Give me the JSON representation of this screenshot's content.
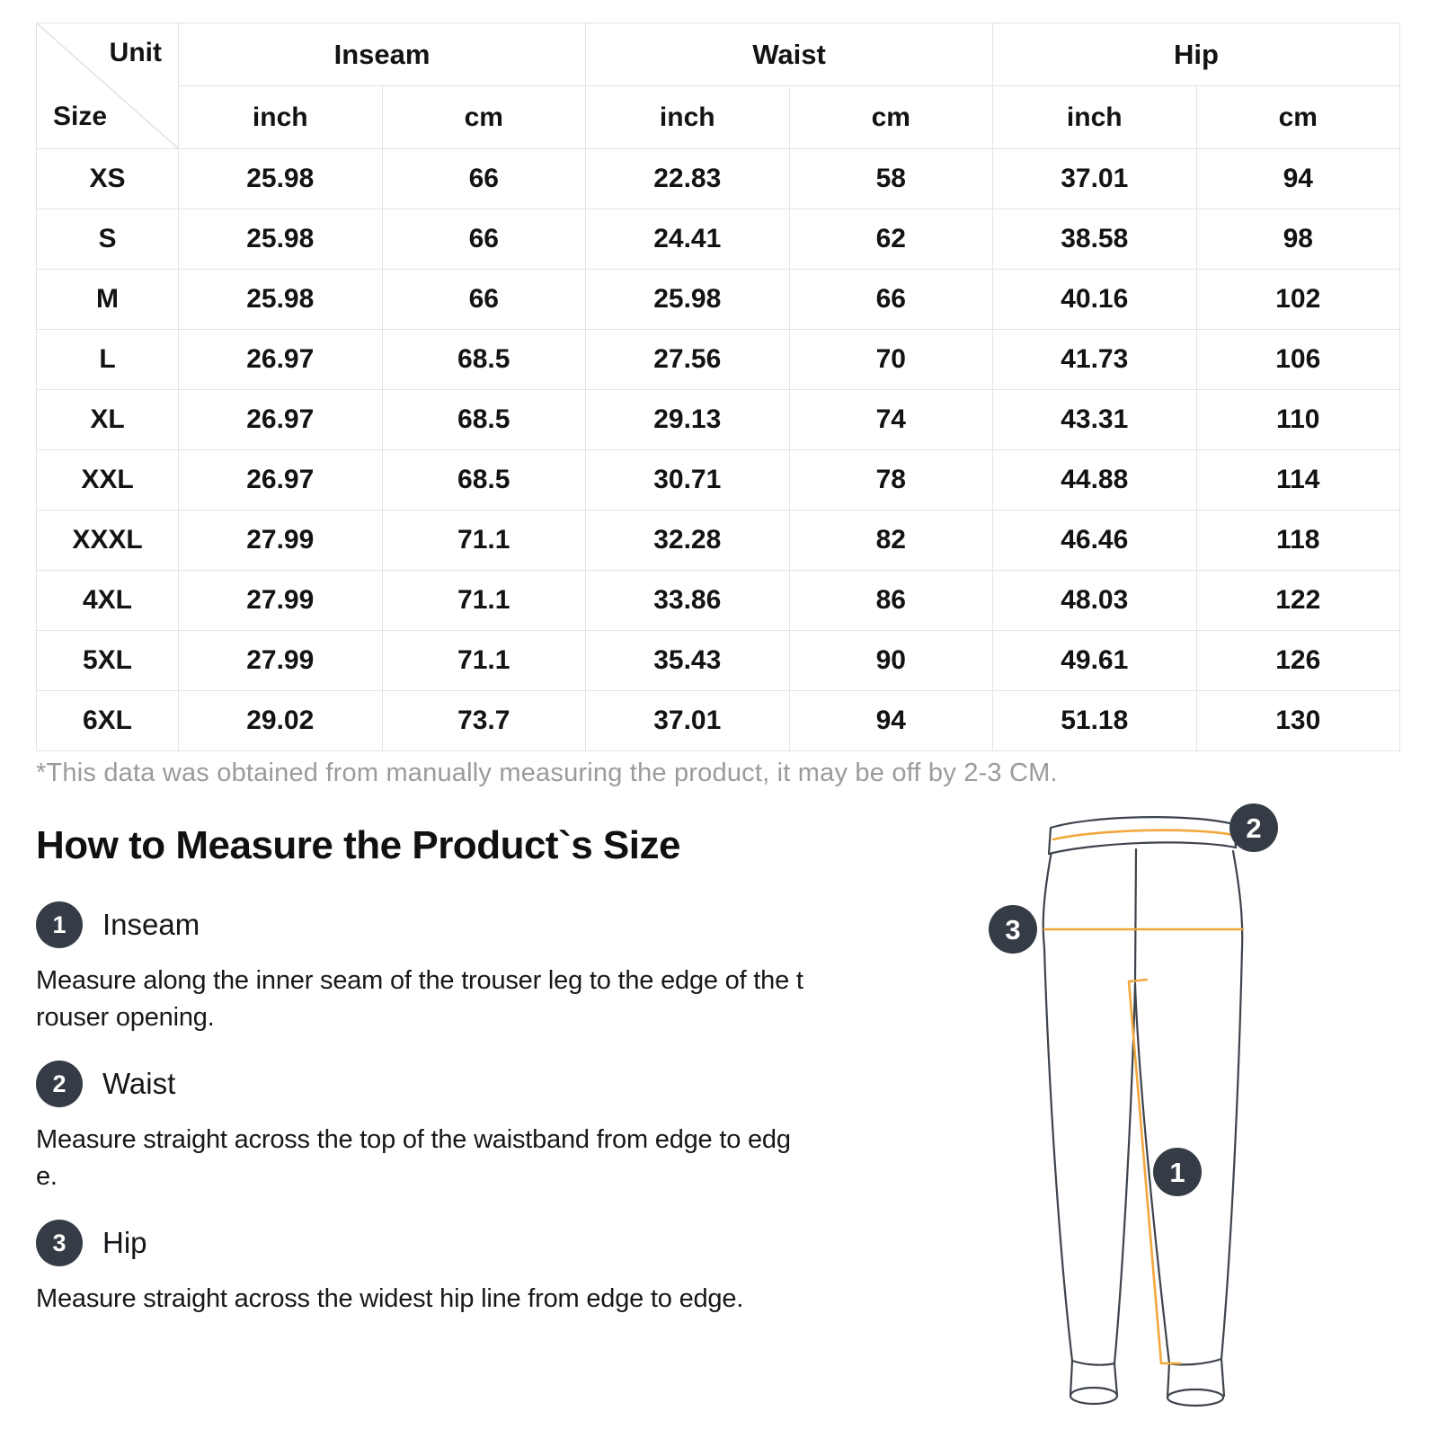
{
  "table": {
    "corner": {
      "unit_label": "Unit",
      "size_label": "Size"
    },
    "groups": [
      "Inseam",
      "Waist",
      "Hip"
    ],
    "sub_headers": [
      "inch",
      "cm",
      "inch",
      "cm",
      "inch",
      "cm"
    ],
    "rows": [
      {
        "size": "XS",
        "cells": [
          "25.98",
          "66",
          "22.83",
          "58",
          "37.01",
          "94"
        ]
      },
      {
        "size": "S",
        "cells": [
          "25.98",
          "66",
          "24.41",
          "62",
          "38.58",
          "98"
        ]
      },
      {
        "size": "M",
        "cells": [
          "25.98",
          "66",
          "25.98",
          "66",
          "40.16",
          "102"
        ]
      },
      {
        "size": "L",
        "cells": [
          "26.97",
          "68.5",
          "27.56",
          "70",
          "41.73",
          "106"
        ]
      },
      {
        "size": "XL",
        "cells": [
          "26.97",
          "68.5",
          "29.13",
          "74",
          "43.31",
          "110"
        ]
      },
      {
        "size": "XXL",
        "cells": [
          "26.97",
          "68.5",
          "30.71",
          "78",
          "44.88",
          "114"
        ]
      },
      {
        "size": "XXXL",
        "cells": [
          "27.99",
          "71.1",
          "32.28",
          "82",
          "46.46",
          "118"
        ]
      },
      {
        "size": "4XL",
        "cells": [
          "27.99",
          "71.1",
          "33.86",
          "86",
          "48.03",
          "122"
        ]
      },
      {
        "size": "5XL",
        "cells": [
          "27.99",
          "71.1",
          "35.43",
          "90",
          "49.61",
          "126"
        ]
      },
      {
        "size": "6XL",
        "cells": [
          "29.02",
          "73.7",
          "37.01",
          "94",
          "51.18",
          "130"
        ]
      }
    ],
    "footnote": "*This data was obtained from manually measuring the product, it may be off by 2-3 CM."
  },
  "guide": {
    "title": "How to Measure the Product`s Size",
    "steps": [
      {
        "number": "1",
        "label": "Inseam",
        "description": "Measure along the inner seam of the trouser leg to the edge of the trouser opening."
      },
      {
        "number": "2",
        "label": "Waist",
        "description": "Measure straight across the top of the waistband from edge to edge."
      },
      {
        "number": "3",
        "label": "Hip",
        "description": "Measure straight across the widest hip line from edge to edge."
      }
    ]
  },
  "diagram": {
    "markers": [
      "1",
      "2",
      "3"
    ],
    "colors": {
      "outline": "#3d444c",
      "measure_line": "#f2a73d",
      "badge_fill": "#353c45",
      "badge_text": "#ffffff"
    }
  },
  "colors": {
    "table_border": "#e4e4e4",
    "text": "#131313",
    "footnote": "#9b9b9b",
    "background": "#ffffff"
  }
}
